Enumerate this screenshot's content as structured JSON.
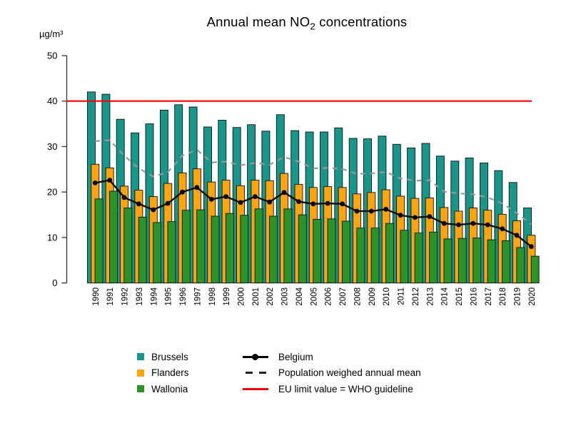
{
  "title": {
    "prefix": "Annual mean NO",
    "subscript": "2",
    "suffix": " concentrations"
  },
  "y_axis": {
    "unit_label": "µg/m³",
    "tick_values": [
      0,
      10,
      20,
      30,
      40,
      50
    ]
  },
  "chart_data": {
    "type": "bar",
    "categories": [
      "1990",
      "1991",
      "1992",
      "1993",
      "1994",
      "1995",
      "1996",
      "1997",
      "1998",
      "1999",
      "2000",
      "2001",
      "2002",
      "2003",
      "2004",
      "2005",
      "2006",
      "2007",
      "2008",
      "2009",
      "2010",
      "2011",
      "2012",
      "2013",
      "2014",
      "2015",
      "2016",
      "2017",
      "2018",
      "2019",
      "2020"
    ],
    "ylim": [
      0,
      50
    ],
    "grid": false,
    "legend_position": "bottom",
    "series": [
      {
        "name": "Brussels",
        "type": "bar",
        "color": "#17968b",
        "values": [
          42,
          41.5,
          36,
          33,
          35,
          38,
          39.2,
          38.7,
          34.3,
          35.8,
          34.2,
          34.8,
          33.4,
          37,
          33.5,
          33.2,
          33.2,
          34.1,
          31.8,
          31.7,
          32.3,
          30.5,
          29.7,
          30.7,
          27.9,
          26.8,
          27.5,
          26.4,
          24.7,
          22.1,
          16.5
        ]
      },
      {
        "name": "Flanders",
        "type": "bar",
        "color": "#ffa40d",
        "values": [
          26.1,
          25.3,
          21.3,
          20.4,
          19,
          21.9,
          24.2,
          25.1,
          22.2,
          22.6,
          21.4,
          22.6,
          22.5,
          24.1,
          21.7,
          21,
          21.2,
          21,
          19.6,
          19.9,
          20.5,
          19.1,
          18.6,
          18.7,
          16.6,
          15.8,
          16.5,
          16,
          15.1,
          13.7,
          10.5
        ]
      },
      {
        "name": "Wallonia",
        "type": "bar",
        "color": "#2b9428",
        "values": [
          18.5,
          20.2,
          16.5,
          14.5,
          13.3,
          13.5,
          16,
          16.1,
          14.7,
          15.3,
          14.9,
          16.3,
          14.7,
          16.3,
          15,
          14,
          14.1,
          13.6,
          12.1,
          12.1,
          13.1,
          11.6,
          11,
          11.2,
          9.7,
          9.8,
          9.9,
          9.5,
          9.3,
          7.8,
          5.9
        ]
      },
      {
        "name": "Belgium",
        "type": "line-markers",
        "color": "#000000",
        "values": [
          22,
          22.6,
          18.8,
          17.4,
          16.1,
          17.5,
          20,
          21,
          18.4,
          19,
          17.7,
          19,
          17.8,
          19.9,
          17.9,
          17.4,
          17.5,
          17.4,
          15.8,
          15.8,
          16.2,
          14.9,
          14.4,
          14.6,
          13.1,
          12.8,
          13.1,
          12.8,
          11.9,
          10.5,
          8
        ]
      },
      {
        "name": "Population weighed annual mean",
        "type": "dashed-line",
        "color": "#999999",
        "values": [
          31.2,
          31.4,
          28,
          25.2,
          23.4,
          24.4,
          28,
          29.3,
          26.5,
          26.7,
          25.9,
          26.4,
          26,
          27.7,
          26.7,
          25.2,
          25.3,
          25.1,
          24,
          24.1,
          24.4,
          23,
          22.5,
          22.6,
          20.1,
          19.7,
          19.5,
          18.8,
          17.5,
          15.4,
          12.9
        ]
      },
      {
        "name": "EU limit value = WHO guideline",
        "type": "horizontal-line",
        "color": "#f90000",
        "value": 40
      }
    ]
  },
  "legend": {
    "column1": [
      {
        "label": "Brussels",
        "swatch": "#17968b"
      },
      {
        "label": "Flanders",
        "swatch": "#ffa40d"
      },
      {
        "label": "Wallonia",
        "swatch": "#2b9428"
      }
    ],
    "column2": [
      {
        "label": "Belgium",
        "symbol": "line-dot",
        "color": "#000000"
      },
      {
        "label": "Population weighed annual mean",
        "symbol": "dashes",
        "color": "#222222"
      },
      {
        "label": "EU limit value = WHO guideline",
        "symbol": "line",
        "color": "#f90000"
      }
    ]
  }
}
